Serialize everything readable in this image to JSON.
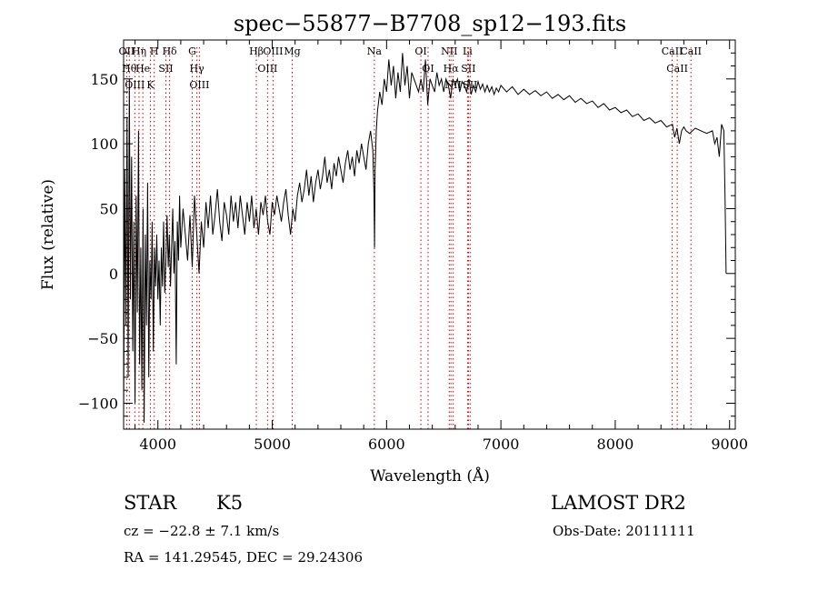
{
  "chart_data": {
    "type": "line",
    "title": "spec−55877−B7708_sp12−193.fits",
    "xlabel": "Wavelength (Å)",
    "ylabel": "Flux (relative)",
    "xlim": [
      3700,
      9050
    ],
    "ylim": [
      -120,
      180
    ],
    "xticks": [
      4000,
      5000,
      6000,
      7000,
      8000,
      9000
    ],
    "yticks": [
      -100,
      -50,
      0,
      50,
      100,
      150
    ],
    "ytick_labels": [
      "−100",
      "−50",
      "0",
      "50",
      "100",
      "150"
    ],
    "grid": false,
    "line_color": "#000000",
    "marker_color": "#cc0000",
    "series": [
      {
        "points": [
          [
            3700,
            -110
          ],
          [
            3710,
            80
          ],
          [
            3720,
            -40
          ],
          [
            3730,
            120
          ],
          [
            3740,
            -80
          ],
          [
            3750,
            150
          ],
          [
            3760,
            -20
          ],
          [
            3770,
            90
          ],
          [
            3780,
            -60
          ],
          [
            3790,
            40
          ],
          [
            3800,
            -100
          ],
          [
            3810,
            60
          ],
          [
            3820,
            -30
          ],
          [
            3830,
            110
          ],
          [
            3840,
            -70
          ],
          [
            3850,
            20
          ],
          [
            3860,
            -90
          ],
          [
            3870,
            50
          ],
          [
            3880,
            -115
          ],
          [
            3890,
            30
          ],
          [
            3900,
            -40
          ],
          [
            3910,
            70
          ],
          [
            3920,
            -80
          ],
          [
            3930,
            10
          ],
          [
            3940,
            -20
          ],
          [
            3950,
            40
          ],
          [
            3960,
            -60
          ],
          [
            3970,
            20
          ],
          [
            3980,
            -10
          ],
          [
            3990,
            30
          ],
          [
            4000,
            -20
          ],
          [
            4010,
            10
          ],
          [
            4020,
            -40
          ],
          [
            4030,
            20
          ],
          [
            4040,
            -10
          ],
          [
            4050,
            40
          ],
          [
            4060,
            -15
          ],
          [
            4070,
            10
          ],
          [
            4080,
            45
          ],
          [
            4090,
            5
          ],
          [
            4100,
            30
          ],
          [
            4110,
            -10
          ],
          [
            4120,
            20
          ],
          [
            4130,
            50
          ],
          [
            4140,
            0
          ],
          [
            4150,
            25
          ],
          [
            4160,
            -70
          ],
          [
            4170,
            40
          ],
          [
            4180,
            10
          ],
          [
            4190,
            60
          ],
          [
            4200,
            20
          ],
          [
            4220,
            50
          ],
          [
            4240,
            30
          ],
          [
            4260,
            10
          ],
          [
            4280,
            45
          ],
          [
            4300,
            5
          ],
          [
            4320,
            60
          ],
          [
            4340,
            30
          ],
          [
            4360,
            0
          ],
          [
            4380,
            40
          ],
          [
            4400,
            20
          ],
          [
            4420,
            55
          ],
          [
            4440,
            35
          ],
          [
            4460,
            60
          ],
          [
            4480,
            30
          ],
          [
            4500,
            45
          ],
          [
            4520,
            65
          ],
          [
            4540,
            40
          ],
          [
            4560,
            25
          ],
          [
            4580,
            55
          ],
          [
            4600,
            45
          ],
          [
            4620,
            30
          ],
          [
            4640,
            60
          ],
          [
            4660,
            40
          ],
          [
            4680,
            55
          ],
          [
            4700,
            35
          ],
          [
            4720,
            60
          ],
          [
            4740,
            45
          ],
          [
            4760,
            30
          ],
          [
            4780,
            55
          ],
          [
            4800,
            40
          ],
          [
            4820,
            60
          ],
          [
            4840,
            35
          ],
          [
            4860,
            50
          ],
          [
            4880,
            30
          ],
          [
            4900,
            55
          ],
          [
            4920,
            45
          ],
          [
            4940,
            60
          ],
          [
            4960,
            40
          ],
          [
            4980,
            30
          ],
          [
            5000,
            55
          ],
          [
            5020,
            45
          ],
          [
            5040,
            60
          ],
          [
            5060,
            50
          ],
          [
            5080,
            40
          ],
          [
            5100,
            55
          ],
          [
            5120,
            65
          ],
          [
            5140,
            45
          ],
          [
            5160,
            30
          ],
          [
            5180,
            50
          ],
          [
            5200,
            40
          ],
          [
            5220,
            60
          ],
          [
            5240,
            70
          ],
          [
            5260,
            55
          ],
          [
            5280,
            65
          ],
          [
            5300,
            80
          ],
          [
            5320,
            60
          ],
          [
            5340,
            75
          ],
          [
            5360,
            55
          ],
          [
            5380,
            70
          ],
          [
            5400,
            80
          ],
          [
            5420,
            65
          ],
          [
            5440,
            75
          ],
          [
            5460,
            90
          ],
          [
            5480,
            70
          ],
          [
            5500,
            80
          ],
          [
            5520,
            65
          ],
          [
            5540,
            85
          ],
          [
            5560,
            75
          ],
          [
            5580,
            90
          ],
          [
            5600,
            80
          ],
          [
            5620,
            70
          ],
          [
            5640,
            85
          ],
          [
            5660,
            95
          ],
          [
            5680,
            80
          ],
          [
            5700,
            90
          ],
          [
            5720,
            75
          ],
          [
            5740,
            95
          ],
          [
            5760,
            85
          ],
          [
            5780,
            100
          ],
          [
            5800,
            90
          ],
          [
            5820,
            80
          ],
          [
            5840,
            100
          ],
          [
            5860,
            110
          ],
          [
            5880,
            95
          ],
          [
            5890,
            60
          ],
          [
            5895,
            20
          ],
          [
            5900,
            80
          ],
          [
            5910,
            110
          ],
          [
            5920,
            125
          ],
          [
            5940,
            140
          ],
          [
            5960,
            130
          ],
          [
            5980,
            150
          ],
          [
            6000,
            140
          ],
          [
            6020,
            165
          ],
          [
            6040,
            145
          ],
          [
            6060,
            160
          ],
          [
            6080,
            135
          ],
          [
            6100,
            155
          ],
          [
            6120,
            140
          ],
          [
            6140,
            170
          ],
          [
            6160,
            145
          ],
          [
            6180,
            160
          ],
          [
            6200,
            135
          ],
          [
            6220,
            155
          ],
          [
            6240,
            150
          ],
          [
            6260,
            145
          ],
          [
            6280,
            140
          ],
          [
            6300,
            150
          ],
          [
            6320,
            140
          ],
          [
            6340,
            165
          ],
          [
            6360,
            130
          ],
          [
            6380,
            150
          ],
          [
            6400,
            145
          ],
          [
            6420,
            140
          ],
          [
            6440,
            155
          ],
          [
            6460,
            145
          ],
          [
            6480,
            150
          ],
          [
            6500,
            140
          ],
          [
            6520,
            150
          ],
          [
            6540,
            145
          ],
          [
            6560,
            135
          ],
          [
            6580,
            150
          ],
          [
            6600,
            145
          ],
          [
            6620,
            150
          ],
          [
            6640,
            140
          ],
          [
            6660,
            148
          ],
          [
            6680,
            145
          ],
          [
            6700,
            140
          ],
          [
            6720,
            150
          ],
          [
            6740,
            138
          ],
          [
            6760,
            145
          ],
          [
            6780,
            140
          ],
          [
            6800,
            148
          ],
          [
            6820,
            142
          ],
          [
            6840,
            146
          ],
          [
            6860,
            140
          ],
          [
            6880,
            145
          ],
          [
            6900,
            140
          ],
          [
            6920,
            144
          ],
          [
            6940,
            138
          ],
          [
            6960,
            143
          ],
          [
            6980,
            140
          ],
          [
            7000,
            145
          ],
          [
            7050,
            140
          ],
          [
            7100,
            144
          ],
          [
            7150,
            138
          ],
          [
            7200,
            142
          ],
          [
            7250,
            138
          ],
          [
            7300,
            141
          ],
          [
            7350,
            137
          ],
          [
            7400,
            140
          ],
          [
            7450,
            135
          ],
          [
            7500,
            138
          ],
          [
            7550,
            134
          ],
          [
            7600,
            137
          ],
          [
            7650,
            132
          ],
          [
            7700,
            135
          ],
          [
            7750,
            131
          ],
          [
            7800,
            133
          ],
          [
            7850,
            128
          ],
          [
            7900,
            131
          ],
          [
            7950,
            126
          ],
          [
            8000,
            128
          ],
          [
            8050,
            124
          ],
          [
            8100,
            126
          ],
          [
            8150,
            121
          ],
          [
            8200,
            123
          ],
          [
            8250,
            118
          ],
          [
            8300,
            120
          ],
          [
            8350,
            116
          ],
          [
            8400,
            118
          ],
          [
            8450,
            113
          ],
          [
            8500,
            115
          ],
          [
            8520,
            105
          ],
          [
            8540,
            112
          ],
          [
            8560,
            100
          ],
          [
            8580,
            110
          ],
          [
            8600,
            113
          ],
          [
            8620,
            110
          ],
          [
            8650,
            108
          ],
          [
            8700,
            112
          ],
          [
            8750,
            110
          ],
          [
            8800,
            108
          ],
          [
            8850,
            110
          ],
          [
            8870,
            100
          ],
          [
            8890,
            105
          ],
          [
            8910,
            90
          ],
          [
            8930,
            115
          ],
          [
            8950,
            110
          ],
          [
            8960,
            60
          ],
          [
            8965,
            30
          ],
          [
            8970,
            0
          ]
        ]
      }
    ],
    "line_markers": [
      {
        "x": 3727,
        "label": "OII"
      },
      {
        "x": 3750,
        "label": "Hθ"
      },
      {
        "x": 3798,
        "label": "OIII"
      },
      {
        "x": 3835,
        "label": "Hη"
      },
      {
        "x": 3868,
        "label": "He"
      },
      {
        "x": 3934,
        "label": "K"
      },
      {
        "x": 3968,
        "label": "H"
      },
      {
        "x": 4070,
        "label": "SII"
      },
      {
        "x": 4102,
        "label": "Hδ"
      },
      {
        "x": 4300,
        "label": "G"
      },
      {
        "x": 4341,
        "label": "Hγ"
      },
      {
        "x": 4363,
        "label": "OIII"
      },
      {
        "x": 4861,
        "label": "Hβ"
      },
      {
        "x": 4959,
        "label": "OIII"
      },
      {
        "x": 5007,
        "label": "OIII"
      },
      {
        "x": 5175,
        "label": "Mg"
      },
      {
        "x": 5893,
        "label": "Na"
      },
      {
        "x": 6300,
        "label": "OI"
      },
      {
        "x": 6363,
        "label": "OI"
      },
      {
        "x": 6548,
        "label": "NII"
      },
      {
        "x": 6563,
        "label": "Hα"
      },
      {
        "x": 6583,
        "label": "NII"
      },
      {
        "x": 6708,
        "label": "Li"
      },
      {
        "x": 6716,
        "label": "SII"
      },
      {
        "x": 6731,
        "label": "SII"
      },
      {
        "x": 8498,
        "label": "CaII"
      },
      {
        "x": 8542,
        "label": "CaII"
      },
      {
        "x": 8662,
        "label": "CaII"
      }
    ]
  },
  "info": {
    "class": "STAR",
    "subclass": "K5",
    "survey": "LAMOST DR2",
    "cz": "cz = −22.8 ± 7.1 km/s",
    "obs_date": "Obs-Date: 20111111",
    "coords": "RA = 141.29545, DEC =  29.24306"
  }
}
